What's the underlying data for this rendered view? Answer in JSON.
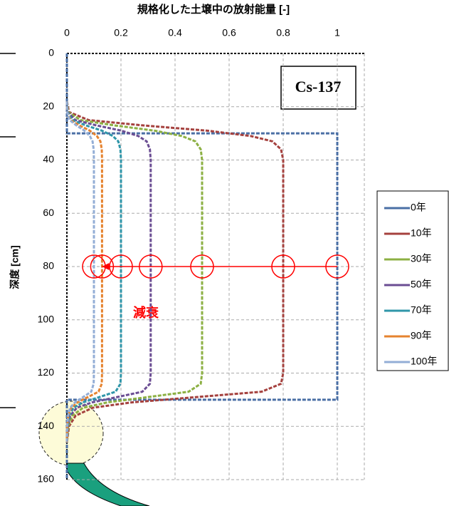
{
  "chart_data": {
    "type": "line",
    "title": "規格化した土壌中の放射能量 [-]",
    "y_label": "深度 [cm]",
    "annotations": [
      "Cs-137",
      "減衰"
    ],
    "xlim": [
      0,
      1.1
    ],
    "xticks": [
      0,
      0.2,
      0.4,
      0.6,
      0.8,
      1
    ],
    "ylim": [
      0,
      160
    ],
    "yticks": [
      0,
      20,
      40,
      60,
      80,
      100,
      120,
      140,
      160
    ],
    "y_inverted": true,
    "grid": true,
    "legend": "right",
    "series": [
      {
        "name": "0年",
        "color": "#4a6fa5",
        "values": [
          0,
          0,
          1,
          1,
          0,
          0
        ],
        "depth": [
          0,
          30,
          30,
          130,
          130,
          160
        ]
      },
      {
        "name": "10年",
        "color": "#a5413e",
        "values": [
          0,
          0.008,
          0.08,
          0.28,
          0.52,
          0.68,
          0.76,
          0.792,
          0.8,
          0.8,
          0.8,
          0.8,
          0.8,
          0.792,
          0.72,
          0.48,
          0.24,
          0.096,
          0.032,
          0.008,
          0
        ],
        "depth": [
          18,
          22,
          25,
          27,
          29,
          31,
          33,
          36,
          40,
          60,
          80,
          100,
          120,
          124,
          127,
          129,
          131,
          133,
          136,
          140,
          146
        ]
      },
      {
        "name": "30年",
        "color": "#8cb043",
        "values": [
          0,
          0.005,
          0.05,
          0.175,
          0.325,
          0.425,
          0.475,
          0.495,
          0.5,
          0.5,
          0.5,
          0.5,
          0.5,
          0.495,
          0.45,
          0.3,
          0.15,
          0.06,
          0.02,
          0.005,
          0
        ],
        "depth": [
          18,
          22,
          25,
          27,
          29,
          31,
          33,
          36,
          40,
          60,
          80,
          100,
          120,
          124,
          127,
          129,
          131,
          133,
          136,
          140,
          146
        ]
      },
      {
        "name": "50年",
        "color": "#6b4d93",
        "values": [
          0,
          0.003,
          0.031,
          0.109,
          0.202,
          0.264,
          0.295,
          0.307,
          0.31,
          0.31,
          0.31,
          0.31,
          0.31,
          0.307,
          0.279,
          0.186,
          0.093,
          0.037,
          0.012,
          0.003,
          0
        ],
        "depth": [
          18,
          22,
          25,
          27,
          29,
          31,
          33,
          36,
          40,
          60,
          80,
          100,
          120,
          124,
          127,
          129,
          131,
          133,
          136,
          140,
          146
        ]
      },
      {
        "name": "70年",
        "color": "#2f96a9",
        "values": [
          0,
          0.002,
          0.02,
          0.07,
          0.13,
          0.17,
          0.19,
          0.198,
          0.2,
          0.2,
          0.2,
          0.2,
          0.2,
          0.198,
          0.18,
          0.12,
          0.06,
          0.024,
          0.008,
          0.002,
          0
        ],
        "depth": [
          18,
          22,
          25,
          27,
          29,
          31,
          33,
          36,
          40,
          60,
          80,
          100,
          120,
          124,
          127,
          129,
          131,
          133,
          136,
          140,
          146
        ]
      },
      {
        "name": "90年",
        "color": "#e6832f",
        "values": [
          0,
          0.001,
          0.013,
          0.046,
          0.085,
          0.111,
          0.124,
          0.129,
          0.13,
          0.13,
          0.13,
          0.13,
          0.13,
          0.129,
          0.117,
          0.078,
          0.039,
          0.016,
          0.005,
          0.001,
          0
        ],
        "depth": [
          18,
          22,
          25,
          27,
          29,
          31,
          33,
          36,
          40,
          60,
          80,
          100,
          120,
          124,
          127,
          129,
          131,
          133,
          136,
          140,
          146
        ]
      },
      {
        "name": "100年",
        "color": "#93aed6",
        "values": [
          0,
          0.001,
          0.01,
          0.035,
          0.065,
          0.085,
          0.095,
          0.099,
          0.1,
          0.1,
          0.1,
          0.1,
          0.1,
          0.099,
          0.09,
          0.06,
          0.03,
          0.012,
          0.004,
          0.001,
          0
        ],
        "depth": [
          18,
          22,
          25,
          27,
          29,
          31,
          33,
          36,
          40,
          60,
          80,
          100,
          120,
          124,
          127,
          129,
          131,
          133,
          136,
          140,
          146
        ]
      }
    ]
  }
}
